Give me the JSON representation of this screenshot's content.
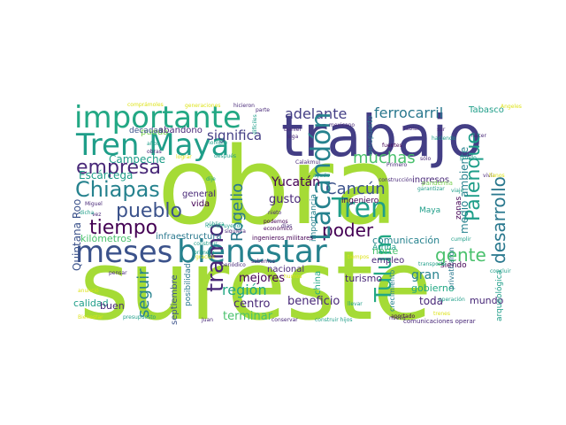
{
  "palette": {
    "lime": "#a5db36",
    "light_green": "#7ad151",
    "green": "#4ac16d",
    "teal_green": "#22a884",
    "teal": "#1f9e89",
    "teal_blue": "#26828e",
    "blue_teal": "#2a788e",
    "slate_blue": "#31688e",
    "indigo": "#3b528b",
    "deep_indigo": "#433e85",
    "purple": "#482878",
    "dark_purple": "#440154",
    "yellow": "#dde318",
    "pale_yellow": "#fde725"
  },
  "words": [
    {
      "text": "obra",
      "color": "lime"
    },
    {
      "text": "sureste",
      "color": "lime"
    },
    {
      "text": "trabajo",
      "color": "deep_indigo"
    },
    {
      "text": "importante",
      "color": "teal_green"
    },
    {
      "text": "bienestar",
      "color": "teal_blue"
    },
    {
      "text": "Tren Maya",
      "color": "teal"
    },
    {
      "text": "meses",
      "color": "indigo"
    },
    {
      "text": "empresa",
      "color": "purple"
    },
    {
      "text": "Chiapas",
      "color": "teal_blue"
    },
    {
      "text": "tiempo",
      "color": "dark_purple"
    },
    {
      "text": "pueblo",
      "color": "indigo"
    },
    {
      "text": "tramo",
      "color": "purple"
    },
    {
      "text": "Tren",
      "color": "teal"
    },
    {
      "text": "Cancún",
      "color": "indigo"
    },
    {
      "text": "poder",
      "color": "dark_purple"
    },
    {
      "text": "adelante",
      "color": "deep_indigo"
    },
    {
      "text": "ferrocarril",
      "color": "blue_teal"
    },
    {
      "text": "muchas",
      "color": "green"
    },
    {
      "text": "gente",
      "color": "green"
    },
    {
      "text": "significa",
      "color": "deep_indigo"
    },
    {
      "text": "Lacandón",
      "color": "teal_blue"
    },
    {
      "text": "Palenque",
      "color": "teal"
    },
    {
      "text": "desarrollo",
      "color": "blue_teal"
    },
    {
      "text": "Tulum",
      "color": "teal_green"
    },
    {
      "text": "Rogelio",
      "color": "blue_teal"
    },
    {
      "text": "seguir",
      "color": "teal_blue"
    },
    {
      "text": "Yucatán",
      "color": "dark_purple"
    },
    {
      "text": "Campeche",
      "color": "teal"
    },
    {
      "text": "Escárcega",
      "color": "teal"
    },
    {
      "text": "Quintana Roo",
      "color": "indigo"
    },
    {
      "text": "región",
      "color": "teal_green"
    },
    {
      "text": "centro",
      "color": "purple"
    },
    {
      "text": "terminar",
      "color": "green"
    },
    {
      "text": "beneficio",
      "color": "purple"
    },
    {
      "text": "mejores",
      "color": "dark_purple"
    },
    {
      "text": "gusto",
      "color": "purple"
    },
    {
      "text": "comunicación",
      "color": "teal_blue"
    },
    {
      "text": "norte",
      "color": "green"
    },
    {
      "text": "empleo",
      "color": "purple"
    },
    {
      "text": "Arriba",
      "color": "teal"
    },
    {
      "text": "gran",
      "color": "teal_blue"
    },
    {
      "text": "gobierno",
      "color": "teal_green"
    },
    {
      "text": "toda",
      "color": "purple"
    },
    {
      "text": "mundo",
      "color": "purple"
    },
    {
      "text": "turismo",
      "color": "purple"
    },
    {
      "text": "calidad",
      "color": "teal"
    },
    {
      "text": "buen",
      "color": "purple"
    },
    {
      "text": "kilómetros",
      "color": "green"
    },
    {
      "text": "infraestructura",
      "color": "blue_teal"
    },
    {
      "text": "general",
      "color": "purple"
    },
    {
      "text": "vida",
      "color": "dark_purple"
    },
    {
      "text": "pueda",
      "color": "light_green"
    },
    {
      "text": "abandono",
      "color": "purple"
    },
    {
      "text": "décadas",
      "color": "indigo"
    },
    {
      "text": "Tabasco",
      "color": "teal"
    },
    {
      "text": "ingresos",
      "color": "purple"
    },
    {
      "text": "medio ambiente",
      "color": "teal_blue"
    },
    {
      "text": "septiembre",
      "color": "indigo"
    },
    {
      "text": "posibilidad",
      "color": "blue_teal"
    },
    {
      "text": "importancia",
      "color": "teal_blue"
    },
    {
      "text": "ingeniero",
      "color": "dark_purple"
    },
    {
      "text": "Maya",
      "color": "teal"
    },
    {
      "text": "china",
      "color": "teal_green"
    },
    {
      "text": "nacional",
      "color": "purple"
    },
    {
      "text": "zonas",
      "color": "dark_purple"
    },
    {
      "text": "aeropuerto",
      "color": "blue_teal"
    },
    {
      "text": "privatizaron",
      "color": "blue_teal"
    },
    {
      "text": "arqueológica",
      "color": "teal"
    },
    {
      "text": "crecimiento",
      "color": "teal_blue"
    },
    {
      "text": "siendo",
      "color": "dark_purple"
    },
    {
      "text": "ingenieros militares",
      "color": "dark_purple"
    },
    {
      "text": "construyendo",
      "color": "teal"
    },
    {
      "text": "pandemia",
      "color": "light_green"
    },
    {
      "text": "comunicaciones operar",
      "color": "purple"
    },
    {
      "text": "presupuesto",
      "color": "teal"
    },
    {
      "text": "Primero",
      "color": "purple"
    },
    {
      "text": "fuentes",
      "color": "dark_purple"
    },
    {
      "text": "hablar",
      "color": "purple"
    },
    {
      "text": "haciendo",
      "color": "teal"
    },
    {
      "text": "cumplir",
      "color": "teal"
    },
    {
      "text": "transporte",
      "color": "teal"
    },
    {
      "text": "operación",
      "color": "teal"
    },
    {
      "text": "generaciones",
      "color": "yellow"
    },
    {
      "text": "comprámoles",
      "color": "yellow"
    },
    {
      "text": "hicieron",
      "color": "purple"
    },
    {
      "text": "parte",
      "color": "purple"
    },
    {
      "text": "mexicano",
      "color": "purple"
    },
    {
      "text": "difíciles",
      "color": "teal"
    },
    {
      "text": "Daniel",
      "color": "purple"
    },
    {
      "text": "siga",
      "color": "purple"
    },
    {
      "text": "sur",
      "color": "purple"
    },
    {
      "text": "sólo",
      "color": "purple"
    },
    {
      "text": "dije",
      "color": "teal"
    },
    {
      "text": "nombre",
      "color": "teal"
    },
    {
      "text": "después",
      "color": "teal"
    },
    {
      "text": "lograr",
      "color": "yellow"
    },
    {
      "text": "Calakmul",
      "color": "purple"
    },
    {
      "text": "Miguel",
      "color": "purple"
    },
    {
      "text": "construcción",
      "color": "purple"
    },
    {
      "text": "garantizar",
      "color": "teal"
    },
    {
      "text": "nieto",
      "color": "purple"
    },
    {
      "text": "podemos",
      "color": "dark_purple"
    },
    {
      "text": "económico",
      "color": "dark_purple"
    },
    {
      "text": "pública",
      "color": "teal"
    },
    {
      "text": "siquiera",
      "color": "purple"
    },
    {
      "text": "sabemos",
      "color": "purple"
    },
    {
      "text": "gracias",
      "color": "yellow"
    },
    {
      "text": "construir",
      "color": "teal"
    },
    {
      "text": "primera",
      "color": "teal"
    },
    {
      "text": "aportado",
      "color": "dark_purple"
    },
    {
      "text": "llevar",
      "color": "teal"
    },
    {
      "text": "conservar",
      "color": "purple"
    },
    {
      "text": "construir hijos",
      "color": "teal"
    },
    {
      "text": "nuevo",
      "color": "purple"
    },
    {
      "text": "trenes",
      "color": "yellow"
    },
    {
      "text": "anunció",
      "color": "yellow"
    },
    {
      "text": "ayuda",
      "color": "teal"
    },
    {
      "text": "viaje",
      "color": "teal"
    },
    {
      "text": "vivía",
      "color": "purple"
    },
    {
      "text": "Angeles",
      "color": "yellow"
    },
    {
      "text": "Juan",
      "color": "purple"
    },
    {
      "text": "pensar",
      "color": "purple"
    },
    {
      "text": "Bienestar",
      "color": "yellow"
    },
    {
      "text": "dicha",
      "color": "teal"
    },
    {
      "text": "llanos",
      "color": "yellow"
    },
    {
      "text": "puedo",
      "color": "teal"
    },
    {
      "text": "concluir",
      "color": "teal"
    },
    {
      "text": "tiempos",
      "color": "yellow"
    },
    {
      "text": "hacer",
      "color": "purple"
    },
    {
      "text": "años",
      "color": "teal"
    },
    {
      "text": "obras",
      "color": "purple"
    },
    {
      "text": "días",
      "color": "purple"
    },
    {
      "text": "vez",
      "color": "purple"
    },
    {
      "text": "periódico",
      "color": "purple"
    },
    {
      "text": "humos",
      "color": "yellow"
    }
  ]
}
